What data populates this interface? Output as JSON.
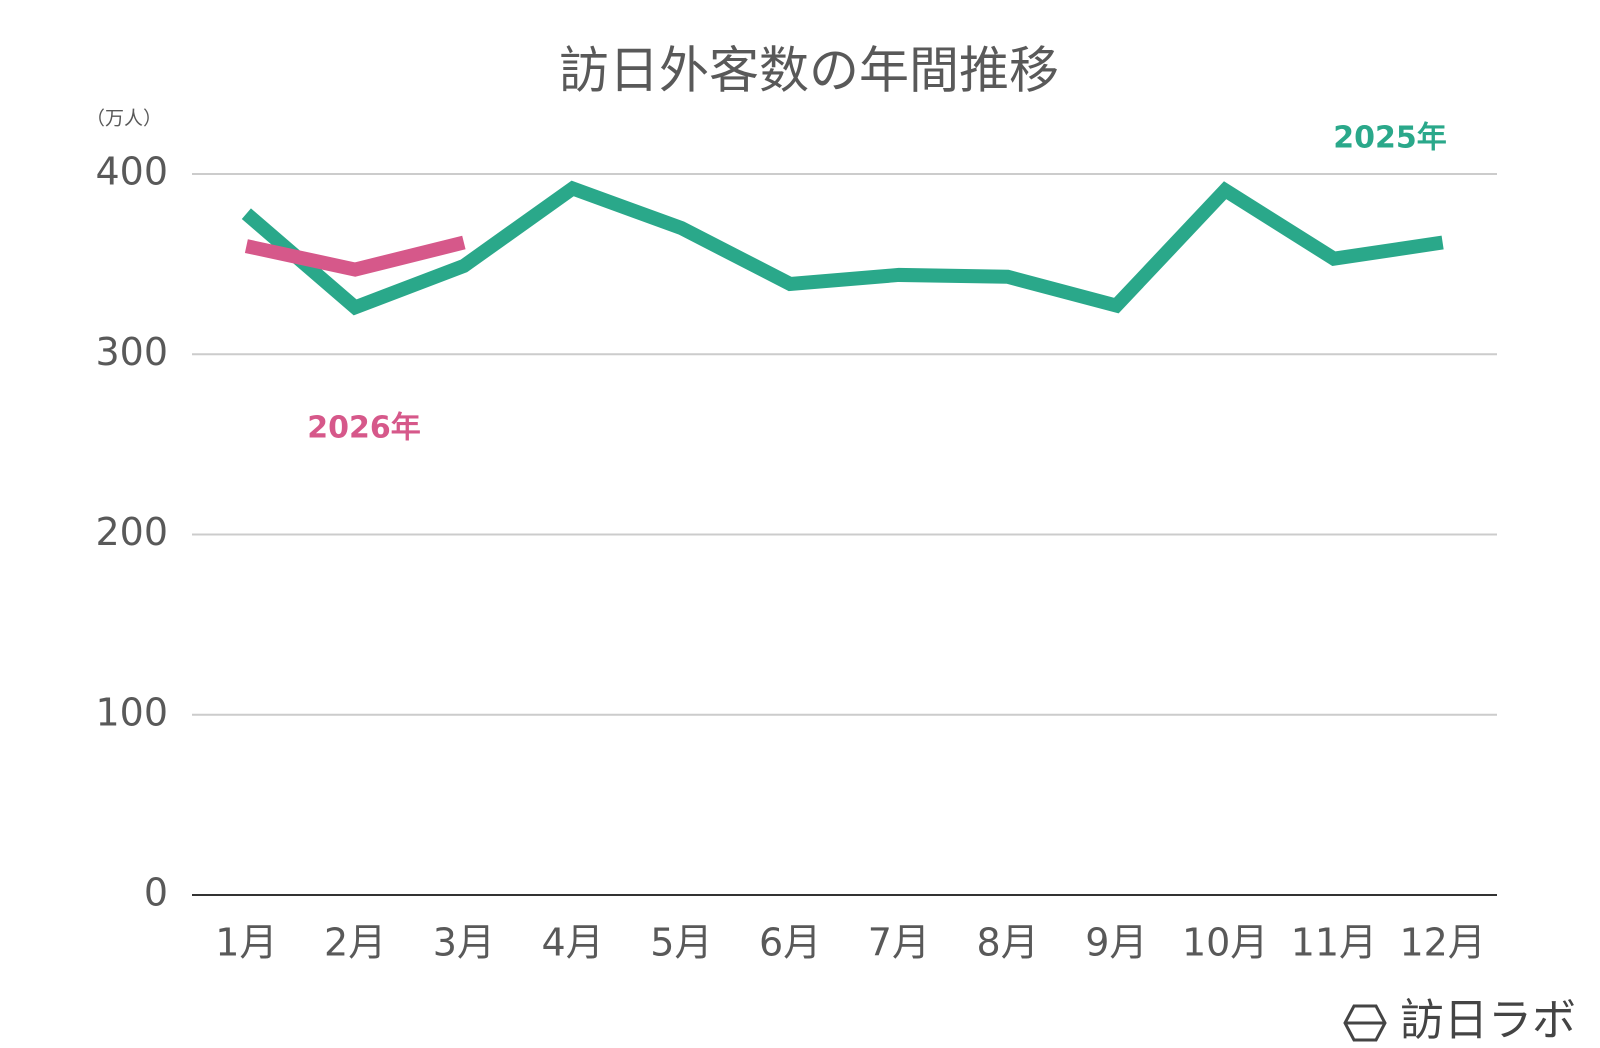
{
  "chart_data": {
    "type": "line",
    "title": "訪日外客数の年間推移",
    "y_unit": "（万人）",
    "logo": "訪日ラボ",
    "categories": [
      "1月",
      "2月",
      "3月",
      "4月",
      "5月",
      "6月",
      "7月",
      "8月",
      "9月",
      "10月",
      "11月",
      "12月"
    ],
    "series": [
      {
        "name": "2025年",
        "color": "#2aa88a",
        "values": [
          378,
          326,
          349,
          392,
          370,
          339,
          344,
          343,
          327,
          391,
          353,
          362
        ]
      },
      {
        "name": "2026年",
        "color": "#d6588a",
        "values": [
          360,
          347,
          362,
          null,
          null,
          null,
          null,
          null,
          null,
          null,
          null,
          null
        ]
      }
    ],
    "ylim": [
      0,
      400
    ],
    "yticks": [
      0,
      100,
      200,
      300,
      400
    ],
    "grid": true
  }
}
